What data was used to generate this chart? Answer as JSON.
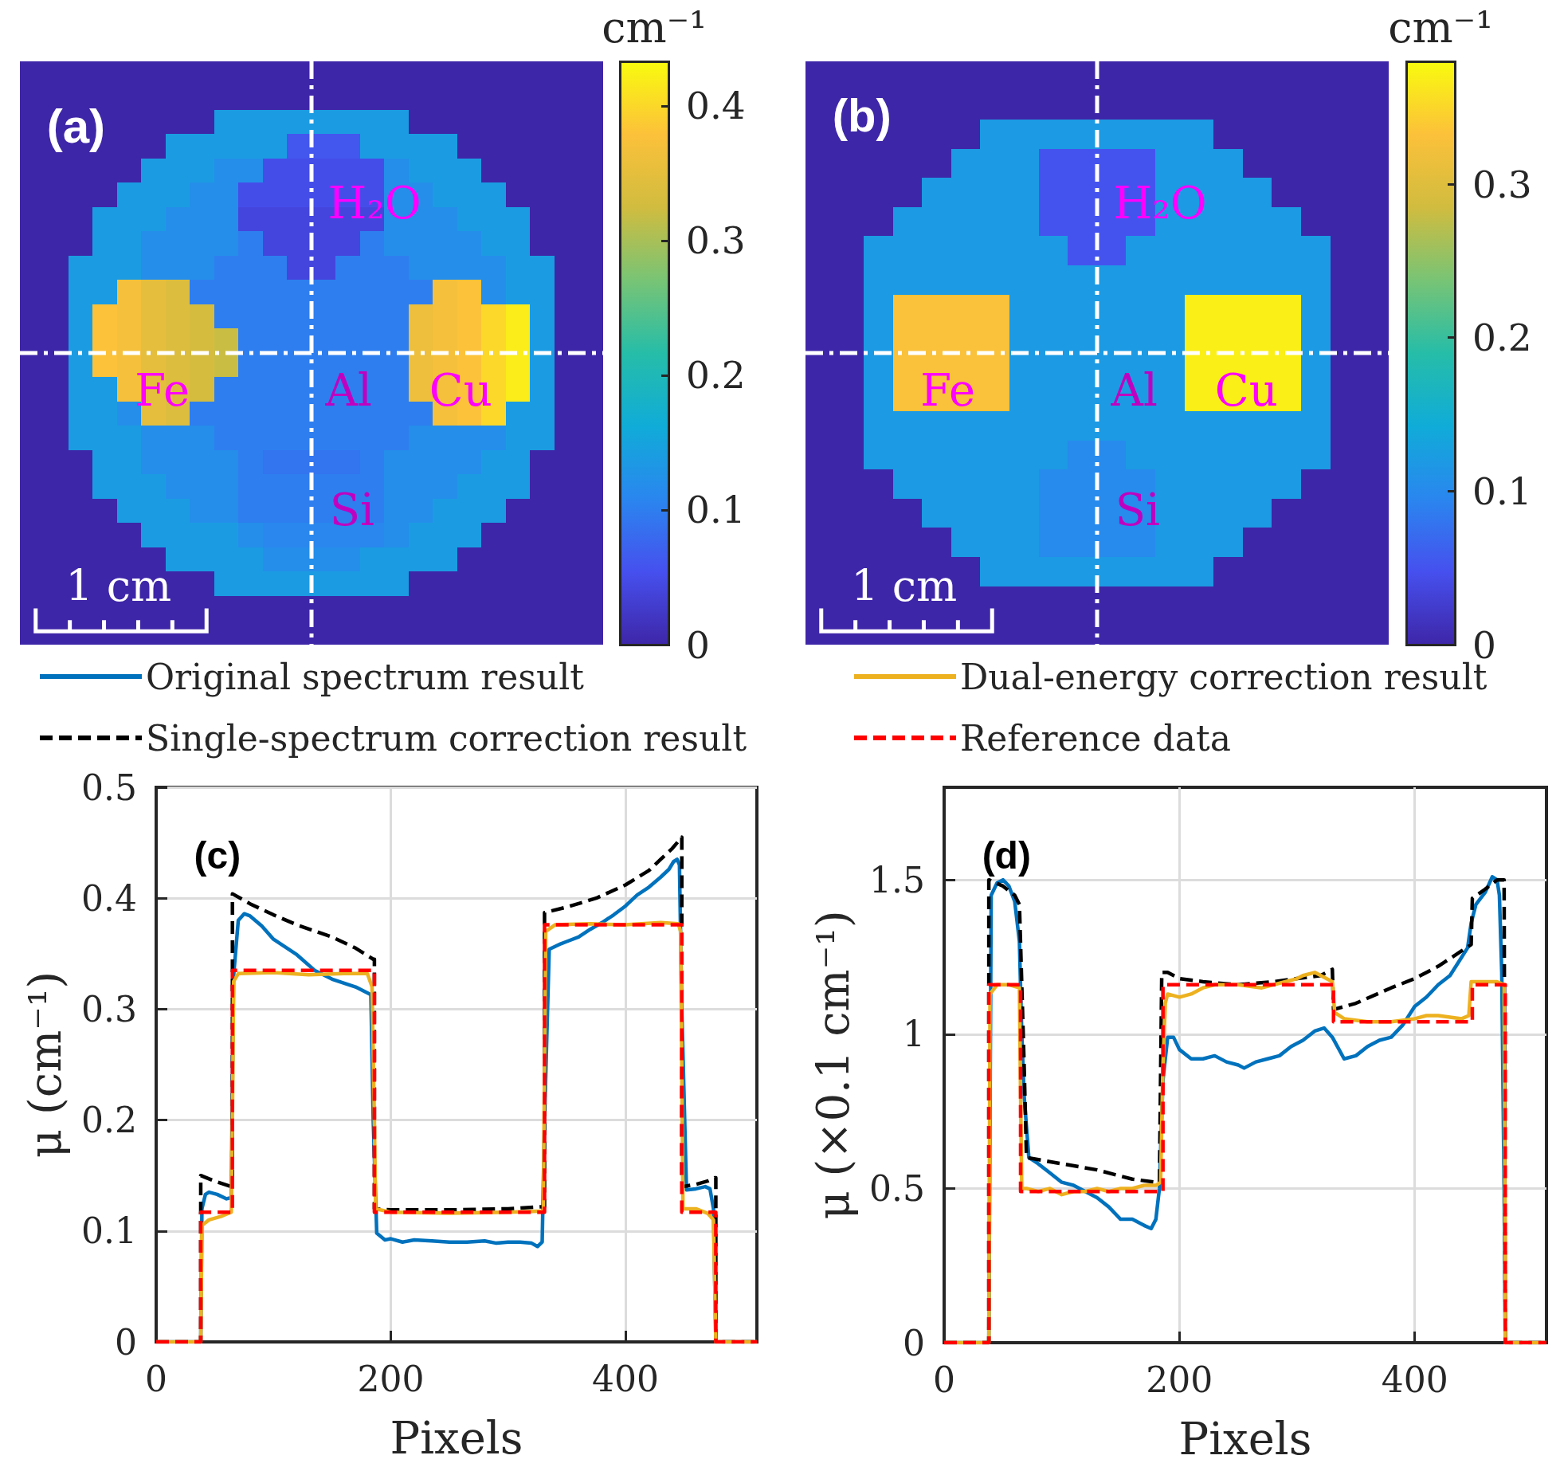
{
  "chart_data": [
    {
      "type": "heatmap",
      "categories": [
        null,
        null,
        null,
        null,
        null,
        null,
        null,
        null,
        null,
        null,
        null,
        null,
        null,
        null,
        null,
        null,
        null,
        null,
        null,
        null,
        null,
        null,
        null,
        null
      ],
      "y_categories": [
        null,
        null,
        null,
        null,
        null,
        null,
        null,
        null,
        null,
        null,
        null,
        null,
        null,
        null,
        null,
        null,
        null,
        null,
        null,
        null,
        null,
        null,
        null,
        null
      ],
      "clim": [
        0,
        0.433
      ],
      "cticks": [
        0,
        0.1,
        0.2,
        0.3,
        0.4
      ],
      "clabel": "cm⁻¹",
      "annotations": [
        "(a)",
        "H₂O",
        "Fe",
        "Al",
        "Cu",
        "Si",
        "1 cm"
      ],
      "cells": [
        [
          0,
          0,
          0,
          0,
          0,
          0,
          0,
          0,
          0,
          0,
          0,
          0,
          0,
          0,
          0,
          0,
          0,
          0,
          0,
          0,
          0,
          0,
          0,
          0
        ],
        [
          0,
          0,
          0,
          0,
          0,
          0,
          0,
          0,
          0,
          0,
          0,
          0,
          0,
          0,
          0,
          0,
          0,
          0,
          0,
          0,
          0,
          0,
          0,
          0
        ],
        [
          0,
          0,
          0,
          0,
          0,
          0,
          0,
          0,
          0.14,
          0.14,
          0.14,
          0.14,
          0.14,
          0.14,
          0.14,
          0.14,
          0,
          0,
          0,
          0,
          0,
          0,
          0,
          0
        ],
        [
          0,
          0,
          0,
          0,
          0,
          0,
          0.14,
          0.14,
          0.14,
          0.14,
          0.14,
          0.06,
          0.06,
          0.06,
          0.14,
          0.14,
          0.14,
          0.14,
          0,
          0,
          0,
          0,
          0,
          0
        ],
        [
          0,
          0,
          0,
          0,
          0,
          0.14,
          0.14,
          0.14,
          0.12,
          0.12,
          0.05,
          0.05,
          0.05,
          0.05,
          0.05,
          0.12,
          0.14,
          0.14,
          0.14,
          0,
          0,
          0,
          0,
          0
        ],
        [
          0,
          0,
          0,
          0,
          0.14,
          0.14,
          0.14,
          0.12,
          0.12,
          0.05,
          0.05,
          0.05,
          0.05,
          0.05,
          0.05,
          0.12,
          0.12,
          0.14,
          0.14,
          0.14,
          0,
          0,
          0,
          0
        ],
        [
          0,
          0,
          0,
          0.14,
          0.14,
          0.14,
          0.12,
          0.12,
          0.12,
          0.04,
          0.04,
          0.04,
          0.04,
          0.04,
          0.04,
          0.12,
          0.12,
          0.12,
          0.14,
          0.14,
          0.14,
          0,
          0,
          0
        ],
        [
          0,
          0,
          0,
          0.14,
          0.14,
          0.12,
          0.12,
          0.12,
          0.12,
          0.1,
          0.04,
          0.04,
          0.04,
          0.04,
          0.1,
          0.12,
          0.12,
          0.12,
          0.12,
          0.14,
          0.14,
          0,
          0,
          0
        ],
        [
          0,
          0,
          0.14,
          0.14,
          0.14,
          0.12,
          0.12,
          0.12,
          0.1,
          0.1,
          0.1,
          0.04,
          0.04,
          0.1,
          0.1,
          0.1,
          0.12,
          0.12,
          0.12,
          0.12,
          0.14,
          0.14,
          0,
          0
        ],
        [
          0,
          0,
          0.14,
          0.14,
          0.37,
          0.35,
          0.34,
          0.1,
          0.1,
          0.1,
          0.1,
          0.1,
          0.1,
          0.1,
          0.1,
          0.1,
          0.1,
          0.37,
          0.38,
          0.12,
          0.14,
          0.14,
          0,
          0
        ],
        [
          0,
          0,
          0.14,
          0.38,
          0.37,
          0.35,
          0.34,
          0.33,
          0.1,
          0.1,
          0.1,
          0.1,
          0.1,
          0.1,
          0.1,
          0.1,
          0.36,
          0.37,
          0.38,
          0.4,
          0.42,
          0.14,
          0,
          0
        ],
        [
          0,
          0,
          0.14,
          0.38,
          0.37,
          0.35,
          0.34,
          0.33,
          0.32,
          0.1,
          0.1,
          0.1,
          0.1,
          0.1,
          0.1,
          0.1,
          0.36,
          0.37,
          0.38,
          0.4,
          0.42,
          0.14,
          0,
          0
        ],
        [
          0,
          0,
          0.14,
          0.38,
          0.37,
          0.35,
          0.34,
          0.33,
          0.32,
          0.1,
          0.1,
          0.1,
          0.1,
          0.1,
          0.1,
          0.1,
          0.36,
          0.37,
          0.38,
          0.4,
          0.42,
          0.14,
          0,
          0
        ],
        [
          0,
          0,
          0.14,
          0.14,
          0.37,
          0.35,
          0.34,
          0.33,
          0.1,
          0.1,
          0.1,
          0.1,
          0.1,
          0.1,
          0.1,
          0.1,
          0.36,
          0.37,
          0.38,
          0.4,
          0.42,
          0.14,
          0,
          0
        ],
        [
          0,
          0,
          0.14,
          0.14,
          0.12,
          0.35,
          0.34,
          0.1,
          0.1,
          0.1,
          0.1,
          0.1,
          0.1,
          0.1,
          0.1,
          0.1,
          0.1,
          0.37,
          0.38,
          0.4,
          0.14,
          0.14,
          0,
          0
        ],
        [
          0,
          0,
          0.14,
          0.14,
          0.14,
          0.12,
          0.12,
          0.12,
          0.1,
          0.1,
          0.1,
          0.1,
          0.1,
          0.1,
          0.1,
          0.1,
          0.12,
          0.12,
          0.12,
          0.12,
          0.14,
          0.14,
          0,
          0
        ],
        [
          0,
          0,
          0,
          0.14,
          0.14,
          0.12,
          0.12,
          0.12,
          0.12,
          0.1,
          0.09,
          0.09,
          0.09,
          0.09,
          0.1,
          0.12,
          0.12,
          0.12,
          0.12,
          0.14,
          0.14,
          0,
          0,
          0
        ],
        [
          0,
          0,
          0,
          0.14,
          0.14,
          0.14,
          0.12,
          0.12,
          0.12,
          0.1,
          0.1,
          0.1,
          0.1,
          0.1,
          0.1,
          0.12,
          0.12,
          0.12,
          0.14,
          0.14,
          0.14,
          0,
          0,
          0
        ],
        [
          0,
          0,
          0,
          0,
          0.14,
          0.14,
          0.14,
          0.12,
          0.12,
          0.1,
          0.1,
          0.1,
          0.1,
          0.1,
          0.1,
          0.12,
          0.12,
          0.14,
          0.14,
          0.14,
          0,
          0,
          0,
          0
        ],
        [
          0,
          0,
          0,
          0,
          0,
          0.14,
          0.14,
          0.14,
          0.14,
          0.12,
          0.11,
          0.11,
          0.11,
          0.11,
          0.11,
          0.12,
          0.14,
          0.14,
          0.14,
          0,
          0,
          0,
          0,
          0
        ],
        [
          0,
          0,
          0,
          0,
          0,
          0,
          0.14,
          0.14,
          0.14,
          0.14,
          0.12,
          0.12,
          0.12,
          0.12,
          0.14,
          0.14,
          0.14,
          0.14,
          0,
          0,
          0,
          0,
          0,
          0
        ],
        [
          0,
          0,
          0,
          0,
          0,
          0,
          0,
          0,
          0.14,
          0.14,
          0.14,
          0.14,
          0.14,
          0.14,
          0.14,
          0.14,
          0,
          0,
          0,
          0,
          0,
          0,
          0,
          0
        ],
        [
          0,
          0,
          0,
          0,
          0,
          0,
          0,
          0,
          0,
          0,
          0,
          0,
          0,
          0,
          0,
          0,
          0,
          0,
          0,
          0,
          0,
          0,
          0,
          0
        ],
        [
          0,
          0,
          0,
          0,
          0,
          0,
          0,
          0,
          0,
          0,
          0,
          0,
          0,
          0,
          0,
          0,
          0,
          0,
          0,
          0,
          0,
          0,
          0,
          0
        ]
      ]
    },
    {
      "type": "heatmap",
      "categories": [
        null,
        null,
        null,
        null,
        null,
        null,
        null,
        null,
        null,
        null,
        null,
        null,
        null,
        null,
        null,
        null,
        null,
        null,
        null,
        null
      ],
      "y_categories": [
        null,
        null,
        null,
        null,
        null,
        null,
        null,
        null,
        null,
        null,
        null,
        null,
        null,
        null,
        null,
        null,
        null,
        null,
        null,
        null
      ],
      "clim": [
        0,
        0.38
      ],
      "cticks": [
        0,
        0.1,
        0.2,
        0.3
      ],
      "clabel": "cm⁻¹",
      "annotations": [
        "(b)",
        "H₂O",
        "Fe",
        "Al",
        "Cu",
        "Si",
        "1 cm"
      ],
      "cells": [
        [
          0,
          0,
          0,
          0,
          0,
          0,
          0,
          0,
          0,
          0,
          0,
          0,
          0,
          0,
          0,
          0,
          0,
          0,
          0,
          0
        ],
        [
          0,
          0,
          0,
          0,
          0,
          0,
          0,
          0,
          0,
          0,
          0,
          0,
          0,
          0,
          0,
          0,
          0,
          0,
          0,
          0
        ],
        [
          0,
          0,
          0,
          0,
          0,
          0,
          0.12,
          0.12,
          0.12,
          0.12,
          0.12,
          0.12,
          0.12,
          0.12,
          0,
          0,
          0,
          0,
          0,
          0
        ],
        [
          0,
          0,
          0,
          0,
          0,
          0.12,
          0.12,
          0.12,
          0.05,
          0.05,
          0.05,
          0.05,
          0.12,
          0.12,
          0.12,
          0,
          0,
          0,
          0,
          0
        ],
        [
          0,
          0,
          0,
          0,
          0.12,
          0.12,
          0.12,
          0.12,
          0.05,
          0.05,
          0.05,
          0.05,
          0.12,
          0.12,
          0.12,
          0.12,
          0,
          0,
          0,
          0
        ],
        [
          0,
          0,
          0,
          0.12,
          0.12,
          0.12,
          0.12,
          0.12,
          0.05,
          0.05,
          0.05,
          0.05,
          0.12,
          0.12,
          0.12,
          0.12,
          0.12,
          0,
          0,
          0
        ],
        [
          0,
          0,
          0.12,
          0.12,
          0.12,
          0.12,
          0.12,
          0.12,
          0.12,
          0.05,
          0.05,
          0.12,
          0.12,
          0.12,
          0.12,
          0.12,
          0.12,
          0.12,
          0,
          0
        ],
        [
          0,
          0,
          0.12,
          0.12,
          0.12,
          0.12,
          0.12,
          0.12,
          0.12,
          0.12,
          0.12,
          0.12,
          0.12,
          0.12,
          0.12,
          0.12,
          0.12,
          0.12,
          0,
          0
        ],
        [
          0,
          0,
          0.12,
          0.33,
          0.33,
          0.33,
          0.33,
          0.12,
          0.12,
          0.12,
          0.12,
          0.12,
          0.12,
          0.37,
          0.37,
          0.37,
          0.37,
          0.12,
          0,
          0
        ],
        [
          0,
          0,
          0.12,
          0.33,
          0.33,
          0.33,
          0.33,
          0.12,
          0.12,
          0.12,
          0.12,
          0.12,
          0.12,
          0.37,
          0.37,
          0.37,
          0.37,
          0.12,
          0,
          0
        ],
        [
          0,
          0,
          0.12,
          0.33,
          0.33,
          0.33,
          0.33,
          0.12,
          0.12,
          0.12,
          0.12,
          0.12,
          0.12,
          0.37,
          0.37,
          0.37,
          0.37,
          0.12,
          0,
          0
        ],
        [
          0,
          0,
          0.12,
          0.33,
          0.33,
          0.33,
          0.33,
          0.12,
          0.12,
          0.12,
          0.12,
          0.12,
          0.12,
          0.37,
          0.37,
          0.37,
          0.37,
          0.12,
          0,
          0
        ],
        [
          0,
          0,
          0.12,
          0.12,
          0.12,
          0.12,
          0.12,
          0.12,
          0.12,
          0.12,
          0.12,
          0.12,
          0.12,
          0.12,
          0.12,
          0.12,
          0.12,
          0.12,
          0,
          0
        ],
        [
          0,
          0,
          0.12,
          0.12,
          0.12,
          0.12,
          0.12,
          0.12,
          0.12,
          0.1,
          0.1,
          0.12,
          0.12,
          0.12,
          0.12,
          0.12,
          0.12,
          0.12,
          0,
          0
        ],
        [
          0,
          0,
          0,
          0.12,
          0.12,
          0.12,
          0.12,
          0.12,
          0.1,
          0.1,
          0.1,
          0.1,
          0.12,
          0.12,
          0.12,
          0.12,
          0.12,
          0,
          0,
          0
        ],
        [
          0,
          0,
          0,
          0,
          0.12,
          0.12,
          0.12,
          0.12,
          0.1,
          0.1,
          0.1,
          0.1,
          0.12,
          0.12,
          0.12,
          0.12,
          0,
          0,
          0,
          0
        ],
        [
          0,
          0,
          0,
          0,
          0,
          0.12,
          0.12,
          0.12,
          0.1,
          0.1,
          0.1,
          0.1,
          0.12,
          0.12,
          0.12,
          0,
          0,
          0,
          0,
          0
        ],
        [
          0,
          0,
          0,
          0,
          0,
          0,
          0.12,
          0.12,
          0.12,
          0.12,
          0.12,
          0.12,
          0.12,
          0.12,
          0,
          0,
          0,
          0,
          0,
          0
        ],
        [
          0,
          0,
          0,
          0,
          0,
          0,
          0,
          0,
          0,
          0,
          0,
          0,
          0,
          0,
          0,
          0,
          0,
          0,
          0,
          0
        ],
        [
          0,
          0,
          0,
          0,
          0,
          0,
          0,
          0,
          0,
          0,
          0,
          0,
          0,
          0,
          0,
          0,
          0,
          0,
          0,
          0
        ]
      ]
    },
    {
      "type": "line",
      "xlabel": "Pixels",
      "ylabel": "μ (cm⁻¹)",
      "xlim": [
        0,
        512
      ],
      "xticks": [
        0,
        200,
        400
      ],
      "ylim": [
        0,
        0.5
      ],
      "yticks": [
        0,
        0.1,
        0.2,
        0.3,
        0.4,
        0.5
      ],
      "grid": true,
      "legend": "top",
      "annotations": [
        "(c)"
      ],
      "series": [
        {
          "name": "Original spectrum result",
          "color": "#0072bd",
          "line_style": "solid",
          "x": [
            0,
            38,
            39,
            42,
            45,
            52,
            60,
            64,
            66,
            70,
            75,
            80,
            90,
            100,
            110,
            120,
            135,
            150,
            170,
            183,
            185,
            188,
            195,
            200,
            210,
            220,
            235,
            250,
            265,
            280,
            290,
            300,
            310,
            320,
            325,
            329,
            331,
            335,
            345,
            350,
            360,
            370,
            380,
            390,
            400,
            410,
            420,
            430,
            437,
            441,
            444,
            446,
            448,
            452,
            460,
            468,
            472,
            475,
            477,
            512
          ],
          "values": [
            0,
            0,
            0.12,
            0.133,
            0.135,
            0.133,
            0.129,
            0.13,
            0.33,
            0.38,
            0.386,
            0.384,
            0.375,
            0.363,
            0.356,
            0.349,
            0.335,
            0.327,
            0.32,
            0.313,
            0.2,
            0.098,
            0.092,
            0.093,
            0.09,
            0.092,
            0.091,
            0.09,
            0.09,
            0.091,
            0.089,
            0.09,
            0.09,
            0.089,
            0.086,
            0.09,
            0.2,
            0.354,
            0.359,
            0.361,
            0.365,
            0.372,
            0.378,
            0.385,
            0.393,
            0.403,
            0.41,
            0.419,
            0.426,
            0.433,
            0.435,
            0.43,
            0.3,
            0.137,
            0.138,
            0.14,
            0.138,
            0.12,
            0,
            0
          ]
        },
        {
          "name": "Single-spectrum correction result",
          "color": "#000000",
          "line_style": "dashed",
          "x": [
            0,
            38,
            38,
            50,
            64,
            65,
            65,
            80,
            100,
            120,
            150,
            170,
            185,
            186,
            186,
            200,
            250,
            300,
            330,
            331,
            331,
            350,
            375,
            400,
            420,
            430,
            440,
            448,
            448,
            449,
            460,
            470,
            476,
            477,
            477,
            512
          ],
          "values": [
            0,
            0,
            0.15,
            0.145,
            0.14,
            0.14,
            0.404,
            0.395,
            0.385,
            0.376,
            0.365,
            0.355,
            0.345,
            0.345,
            0.12,
            0.119,
            0.119,
            0.12,
            0.122,
            0.122,
            0.387,
            0.392,
            0.4,
            0.412,
            0.425,
            0.435,
            0.445,
            0.455,
            0.147,
            0.14,
            0.142,
            0.145,
            0.148,
            0.148,
            0,
            0
          ]
        },
        {
          "color": "#edb120",
          "line_style": "solid",
          "x": [
            0,
            38,
            39,
            45,
            55,
            64,
            65,
            66,
            70,
            100,
            130,
            160,
            180,
            184,
            186,
            187,
            200,
            250,
            300,
            330,
            331,
            332,
            340,
            370,
            400,
            430,
            445,
            447,
            449,
            460,
            470,
            475,
            477,
            512
          ],
          "values": [
            0,
            0,
            0.105,
            0.11,
            0.113,
            0.117,
            0.2,
            0.325,
            0.332,
            0.333,
            0.331,
            0.332,
            0.332,
            0.32,
            0.2,
            0.12,
            0.117,
            0.116,
            0.117,
            0.118,
            0.25,
            0.37,
            0.376,
            0.377,
            0.376,
            0.378,
            0.377,
            0.37,
            0.12,
            0.12,
            0.116,
            0.11,
            0,
            0
          ]
        },
        {
          "color": "#ff0000",
          "line_style": "dashed",
          "x": [
            0,
            38,
            38,
            65,
            65,
            186,
            186,
            331,
            331,
            448,
            448,
            477,
            477,
            512
          ],
          "values": [
            0,
            0,
            0.117,
            0.117,
            0.335,
            0.335,
            0.117,
            0.117,
            0.376,
            0.376,
            0.117,
            0.117,
            0,
            0
          ]
        }
      ]
    },
    {
      "type": "line",
      "xlabel": "Pixels",
      "ylabel": "μ (×0.1 cm⁻¹)",
      "xlim": [
        0,
        512
      ],
      "xticks": [
        0,
        200,
        400
      ],
      "ylim": [
        0,
        1.8
      ],
      "yticks": [
        0,
        0.5,
        1,
        1.5
      ],
      "grid": true,
      "legend": "top",
      "annotations": [
        "(d)"
      ],
      "series": [
        {
          "color": "#0072bd",
          "line_style": "solid",
          "x": [
            0,
            38,
            40,
            45,
            50,
            55,
            60,
            64,
            66,
            68,
            72,
            80,
            90,
            100,
            110,
            120,
            130,
            140,
            150,
            160,
            170,
            176,
            180,
            183,
            186,
            190,
            195,
            200,
            210,
            220,
            230,
            240,
            250,
            255,
            265,
            275,
            285,
            295,
            305,
            315,
            323,
            330,
            340,
            350,
            360,
            370,
            380,
            390,
            400,
            410,
            420,
            430,
            440,
            445,
            448,
            452,
            460,
            466,
            470,
            472,
            474,
            476,
            477,
            512
          ],
          "values": [
            0,
            0,
            1.45,
            1.49,
            1.5,
            1.48,
            1.43,
            1.3,
            1,
            0.8,
            0.6,
            0.58,
            0.55,
            0.52,
            0.51,
            0.49,
            0.47,
            0.44,
            0.4,
            0.4,
            0.38,
            0.37,
            0.4,
            0.5,
            0.85,
            0.99,
            0.99,
            0.95,
            0.92,
            0.92,
            0.93,
            0.91,
            0.9,
            0.89,
            0.91,
            0.92,
            0.93,
            0.96,
            0.98,
            1.01,
            1.02,
            0.99,
            0.92,
            0.93,
            0.96,
            0.98,
            0.99,
            1.03,
            1.09,
            1.12,
            1.16,
            1.19,
            1.25,
            1.28,
            1.36,
            1.42,
            1.46,
            1.51,
            1.5,
            1.45,
            1.2,
            0.5,
            0,
            0
          ]
        },
        {
          "color": "#000000",
          "line_style": "dashed",
          "x": [
            0,
            38,
            38,
            50,
            60,
            64,
            66,
            68,
            70,
            100,
            130,
            160,
            180,
            183,
            185,
            190,
            200,
            220,
            250,
            280,
            300,
            320,
            330,
            331,
            350,
            380,
            400,
            420,
            440,
            448,
            449,
            460,
            470,
            476,
            477,
            512
          ],
          "values": [
            0,
            0,
            1.5,
            1.48,
            1.45,
            1.42,
            1.16,
            0.9,
            0.6,
            0.58,
            0.56,
            0.53,
            0.52,
            0.52,
            1.2,
            1.2,
            1.18,
            1.17,
            1.16,
            1.17,
            1.18,
            1.19,
            1.21,
            1.08,
            1.1,
            1.15,
            1.18,
            1.22,
            1.27,
            1.29,
            1.44,
            1.47,
            1.5,
            1.5,
            0,
            0
          ]
        },
        {
          "name": "Dual-energy correction result",
          "color": "#edb120",
          "line_style": "solid",
          "x": [
            0,
            38,
            39,
            45,
            55,
            64,
            65,
            66,
            70,
            80,
            90,
            100,
            110,
            120,
            130,
            140,
            150,
            160,
            170,
            180,
            184,
            186,
            188,
            190,
            200,
            210,
            220,
            230,
            250,
            270,
            290,
            300,
            305,
            315,
            325,
            330,
            332,
            340,
            360,
            380,
            400,
            410,
            420,
            440,
            446,
            448,
            450,
            460,
            470,
            476,
            477,
            512
          ],
          "values": [
            0,
            0,
            1.13,
            1.16,
            1.16,
            1.15,
            0.8,
            0.5,
            0.5,
            0.49,
            0.5,
            0.48,
            0.49,
            0.49,
            0.5,
            0.49,
            0.5,
            0.5,
            0.51,
            0.51,
            0.52,
            0.9,
            1.1,
            1.13,
            1.12,
            1.13,
            1.15,
            1.16,
            1.16,
            1.15,
            1.17,
            1.18,
            1.19,
            1.2,
            1.18,
            1.17,
            1.07,
            1.05,
            1.04,
            1.04,
            1.05,
            1.06,
            1.06,
            1.05,
            1.06,
            1.17,
            1.17,
            1.17,
            1.17,
            1.16,
            0,
            0
          ]
        },
        {
          "name": "Reference data",
          "color": "#ff0000",
          "line_style": "dashed",
          "x": [
            0,
            38,
            38,
            65,
            65,
            186,
            186,
            331,
            331,
            449,
            449,
            477,
            477,
            512
          ],
          "values": [
            0,
            0,
            1.16,
            1.16,
            0.49,
            0.49,
            1.16,
            1.16,
            1.04,
            1.04,
            1.16,
            1.16,
            0,
            0
          ]
        }
      ]
    }
  ]
}
